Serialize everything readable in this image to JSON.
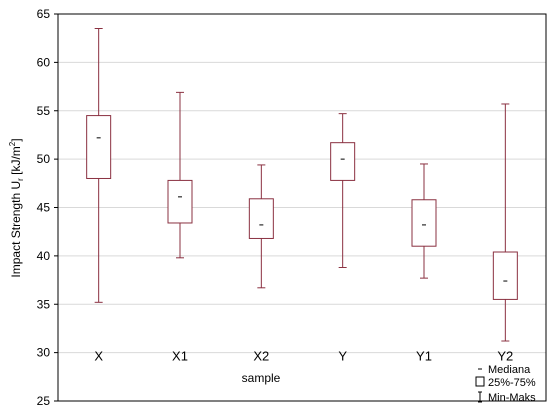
{
  "chart_data": {
    "type": "box",
    "ylabel_main": "Impact Strength U",
    "ylabel_sub": "r",
    "ylabel_unit_open": " [kJ/m",
    "ylabel_unit_sup": "2",
    "ylabel_unit_close": "]",
    "xlabel": "sample",
    "ylim": [
      25,
      65
    ],
    "yticks": [
      25,
      30,
      35,
      40,
      45,
      50,
      55,
      60,
      65
    ],
    "grid": true,
    "legend_position": "bottom-right",
    "legend": {
      "median": "Mediana",
      "box": "25%-75%",
      "whisker": "Min-Maks"
    },
    "categories": [
      "X",
      "X1",
      "X2",
      "Y",
      "Y1",
      "Y2"
    ],
    "series": [
      {
        "category": "X",
        "min": 35.2,
        "q1": 48.0,
        "median": 52.2,
        "q3": 54.5,
        "max": 63.5
      },
      {
        "category": "X1",
        "min": 39.8,
        "q1": 43.4,
        "median": 46.1,
        "q3": 47.8,
        "max": 56.9
      },
      {
        "category": "X2",
        "min": 36.7,
        "q1": 41.8,
        "median": 43.2,
        "q3": 45.9,
        "max": 49.4
      },
      {
        "category": "Y",
        "min": 38.8,
        "q1": 47.8,
        "median": 50.0,
        "q3": 51.7,
        "max": 54.7
      },
      {
        "category": "Y1",
        "min": 37.7,
        "q1": 41.0,
        "median": 43.2,
        "q3": 45.8,
        "max": 49.5
      },
      {
        "category": "Y2",
        "min": 31.2,
        "q1": 35.5,
        "median": 37.4,
        "q3": 40.4,
        "max": 55.7
      }
    ],
    "colors": {
      "box": "#8a3040",
      "frame": "#000000",
      "grid": "#d9d9d9"
    }
  }
}
